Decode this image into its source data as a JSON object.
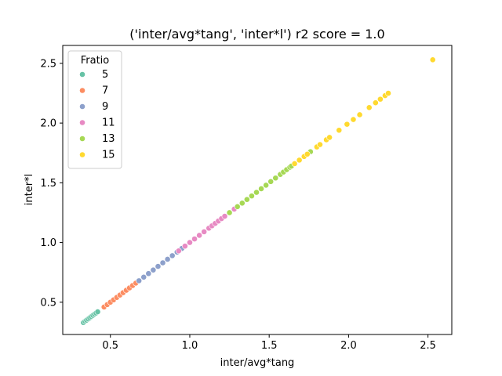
{
  "chart_data": {
    "type": "scatter",
    "title": "('inter/avg*tang', 'inter*l') r2 score = 1.0",
    "xlabel": "inter/avg*tang",
    "ylabel": "inter*l",
    "xlim": [
      0.2,
      2.65
    ],
    "ylim": [
      0.23,
      2.65
    ],
    "xticks": [
      0.5,
      1.0,
      1.5,
      2.0,
      2.5
    ],
    "yticks": [
      0.5,
      1.0,
      1.5,
      2.0,
      2.5
    ],
    "xtick_labels": [
      "0.5",
      "1.0",
      "1.5",
      "2.0",
      "2.5"
    ],
    "ytick_labels": [
      "0.5",
      "1.0",
      "1.5",
      "2.0",
      "2.5"
    ],
    "grid": false,
    "legend": {
      "title": "Fratio",
      "placement": "upper-left"
    },
    "series": [
      {
        "name": "5",
        "color": "#66c2a5",
        "x": [
          0.33,
          0.34,
          0.35,
          0.36,
          0.37,
          0.38,
          0.39,
          0.4,
          0.41,
          0.42
        ],
        "y": [
          0.33,
          0.34,
          0.35,
          0.36,
          0.37,
          0.38,
          0.39,
          0.4,
          0.41,
          0.42
        ]
      },
      {
        "name": "7",
        "color": "#fc8d62",
        "x": [
          0.46,
          0.48,
          0.5,
          0.52,
          0.54,
          0.56,
          0.58,
          0.6,
          0.62,
          0.64,
          0.66
        ],
        "y": [
          0.46,
          0.48,
          0.5,
          0.52,
          0.54,
          0.56,
          0.58,
          0.6,
          0.62,
          0.64,
          0.66
        ]
      },
      {
        "name": "9",
        "color": "#8da0cb",
        "x": [
          0.68,
          0.71,
          0.74,
          0.77,
          0.8,
          0.83,
          0.86,
          0.89,
          0.92,
          0.95
        ],
        "y": [
          0.68,
          0.71,
          0.74,
          0.77,
          0.8,
          0.83,
          0.86,
          0.89,
          0.92,
          0.95
        ]
      },
      {
        "name": "11",
        "color": "#e78ac3",
        "x": [
          0.93,
          0.97,
          1.0,
          1.03,
          1.06,
          1.09,
          1.12,
          1.14,
          1.16,
          1.18,
          1.2,
          1.22,
          1.28
        ],
        "y": [
          0.93,
          0.97,
          1.0,
          1.03,
          1.06,
          1.09,
          1.12,
          1.14,
          1.16,
          1.18,
          1.2,
          1.22,
          1.28
        ]
      },
      {
        "name": "13",
        "color": "#a6d854",
        "x": [
          1.25,
          1.3,
          1.33,
          1.36,
          1.39,
          1.42,
          1.45,
          1.48,
          1.51,
          1.54,
          1.57,
          1.59,
          1.61,
          1.63,
          1.64,
          1.76
        ],
        "y": [
          1.25,
          1.3,
          1.33,
          1.36,
          1.39,
          1.42,
          1.45,
          1.48,
          1.51,
          1.54,
          1.57,
          1.59,
          1.61,
          1.63,
          1.64,
          1.76
        ]
      },
      {
        "name": "15",
        "color": "#ffd92f",
        "x": [
          1.66,
          1.69,
          1.72,
          1.74,
          1.8,
          1.82,
          1.86,
          1.88,
          1.94,
          1.99,
          2.03,
          2.07,
          2.13,
          2.17,
          2.2,
          2.23,
          2.25,
          2.53
        ],
        "y": [
          1.66,
          1.69,
          1.72,
          1.74,
          1.8,
          1.82,
          1.86,
          1.88,
          1.94,
          1.99,
          2.03,
          2.07,
          2.13,
          2.17,
          2.2,
          2.23,
          2.25,
          2.53
        ]
      }
    ]
  }
}
